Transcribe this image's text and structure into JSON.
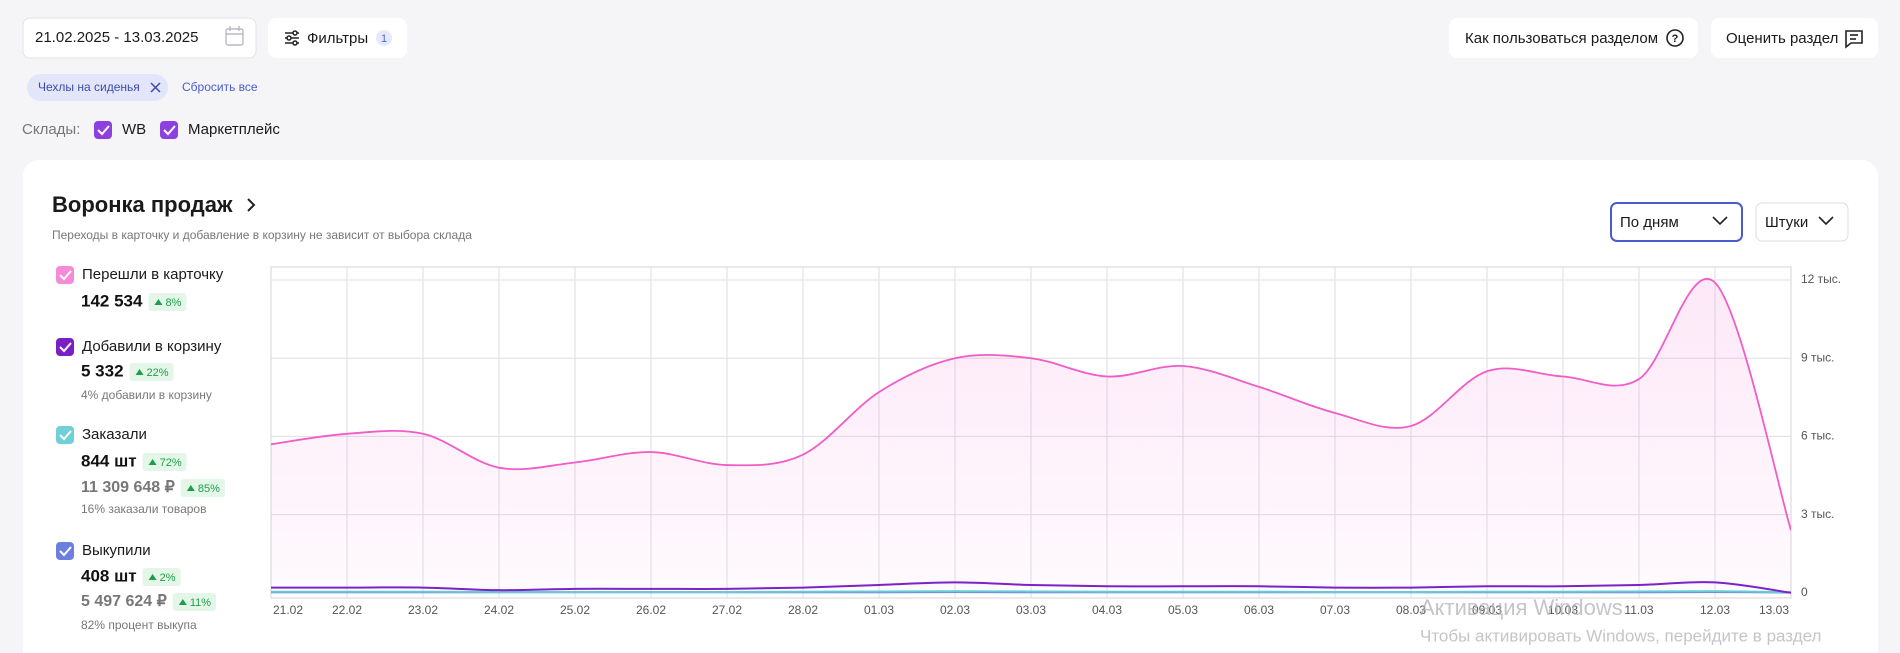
{
  "toolbar": {
    "date_range": "21.02.2025 - 13.03.2025",
    "filters": "Фильтры",
    "filters_count": "1",
    "help": "Как пользоваться разделом",
    "rate": "Оценить раздел"
  },
  "active_filters": {
    "chips": [
      "Чехлы на сиденья"
    ],
    "reset": "Сбросить все"
  },
  "warehouses": {
    "label": "Склады:",
    "options": [
      "WB",
      "Маркетплейс"
    ]
  },
  "funnel": {
    "title": "Воронка продаж",
    "subtitle": "Переходы в карточку и добавление в корзину не зависит от выбора склада",
    "period": "По дням",
    "unit": "Штуки",
    "metrics": [
      {
        "value": "142 534",
        "change": "8%"
      },
      {
        "value": "5 332",
        "change": "22%",
        "note": "4% добавили в корзину"
      },
      {
        "value": "844 шт",
        "change": "72%",
        "amount": "11 309 648 ₽",
        "amount_change": "85%",
        "note": "16% заказали товаров"
      },
      {
        "value": "408 шт",
        "change": "2%",
        "amount": "5 497 624 ₽",
        "amount_change": "11%",
        "note": "82% процент выкупа"
      }
    ]
  },
  "chart_data": {
    "type": "line",
    "categories": [
      "21.02",
      "22.02",
      "23.02",
      "24.02",
      "25.02",
      "26.02",
      "27.02",
      "28.02",
      "01.03",
      "02.03",
      "03.03",
      "04.03",
      "05.03",
      "06.03",
      "07.03",
      "08.03",
      "09.03",
      "10.03",
      "11.03",
      "12.03",
      "13.03"
    ],
    "series": [
      {
        "name": "Перешли в карточку",
        "color": "#f05cc8",
        "values": [
          5700,
          6100,
          6100,
          4800,
          5000,
          5400,
          4900,
          5300,
          7700,
          9000,
          9000,
          8300,
          8700,
          7900,
          6900,
          6400,
          8500,
          8300,
          8200,
          11900,
          2400
        ]
      },
      {
        "name": "Добавили в корзину",
        "color": "#7a1fc6",
        "values": [
          200,
          200,
          200,
          100,
          150,
          150,
          150,
          200,
          300,
          400,
          300,
          250,
          250,
          250,
          200,
          200,
          250,
          250,
          300,
          400,
          0
        ]
      },
      {
        "name": "Заказали",
        "color": "#5fcfd8",
        "values": [
          40,
          40,
          40,
          30,
          30,
          30,
          30,
          40,
          50,
          60,
          50,
          40,
          40,
          40,
          30,
          30,
          40,
          40,
          50,
          60,
          20
        ]
      },
      {
        "name": "Выкупили",
        "color": "#6a7fe0",
        "values": [
          20,
          20,
          20,
          20,
          20,
          20,
          20,
          20,
          20,
          30,
          20,
          20,
          20,
          20,
          20,
          20,
          20,
          20,
          20,
          30,
          10
        ]
      }
    ],
    "ylim": [
      -200,
      12500
    ],
    "yticks": [
      0,
      {
        "value": 3000,
        "label": "3 тыс."
      },
      {
        "value": 6000,
        "label": "6 тыс."
      },
      {
        "value": 9000,
        "label": "9 тыс."
      },
      {
        "value": 12000,
        "label": "12 тыс."
      }
    ],
    "grid": true,
    "area": true
  },
  "watermark": {
    "title": "Активация Windows",
    "text": "Чтобы активировать Windows, перейдите в раздел"
  }
}
